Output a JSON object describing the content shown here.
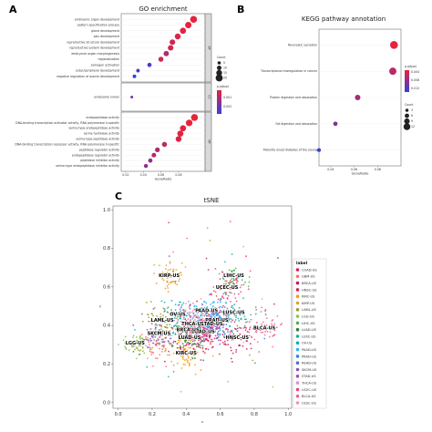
{
  "panels": {
    "a": "A",
    "b": "B",
    "c": "C"
  },
  "chart_data": [
    {
      "type": "scatter",
      "title": "GO enrichment",
      "xlabel": "GeneRatio",
      "xlim": [
        0.015,
        0.11
      ],
      "xticks": [
        0.02,
        0.04,
        0.06,
        0.08
      ],
      "facets": [
        {
          "name": "BP",
          "terms": [
            "embryonic organ development",
            "pattern specification process",
            "gland development",
            "axis development",
            "reproductive structure development",
            "reproductive system development",
            "embryonic organ morphogenesis",
            "regionalization",
            "zymogen activation",
            "outer/peripheral development",
            "negative regulation of ossicle development"
          ],
          "generatio": [
            0.097,
            0.091,
            0.085,
            0.079,
            0.073,
            0.071,
            0.066,
            0.06,
            0.047,
            0.034,
            0.03
          ],
          "count": [
            19,
            17,
            16,
            15,
            14,
            14,
            13,
            12,
            9,
            6,
            6
          ],
          "p_adjust": [
            0.0001,
            0.0001,
            0.0002,
            0.0002,
            0.0004,
            0.0004,
            0.0009,
            0.0004,
            0.0022,
            0.0024,
            0.0026
          ]
        },
        {
          "name": "CC",
          "terms": [
            "endosome lumen"
          ],
          "generatio": [
            0.027
          ],
          "count": [
            3
          ],
          "p_adjust": [
            0.0018
          ]
        },
        {
          "name": "MF",
          "terms": [
            "endopeptidase activity",
            "DNA-binding transcription activator activity, RNA polymerase II-specific",
            "serine-type endopeptidase activity",
            "serine hydrolase activity",
            "serine-type peptidase activity",
            "DNA-binding transcription repressor activity, RNA polymerase II-specific",
            "peptidase regulator activity",
            "endopeptidase regulator activity",
            "peptidase inhibitor activity",
            "serine-type endopeptidase inhibitor activity"
          ],
          "generatio": [
            0.098,
            0.092,
            0.085,
            0.082,
            0.08,
            0.064,
            0.056,
            0.052,
            0.048,
            0.043
          ],
          "count": [
            19,
            18,
            16,
            16,
            15,
            12,
            11,
            10,
            9,
            8
          ],
          "p_adjust": [
            0.0001,
            0.0001,
            0.0002,
            0.0002,
            0.0003,
            0.0007,
            0.0009,
            0.0008,
            0.0012,
            0.0014
          ]
        }
      ],
      "legend": {
        "count_title": "Count",
        "count_levels": [
          5,
          10,
          15,
          20
        ],
        "padj_title": "p.adjust",
        "padj_ticks": [
          "0.001",
          "0.002"
        ],
        "color_low": "#e8223a",
        "color_high": "#3340e0"
      }
    },
    {
      "type": "scatter",
      "title": "KEGG pathway annotation",
      "xlabel": "GeneRatio",
      "xlim": [
        0.03,
        0.1
      ],
      "xticks": [
        0.04,
        0.06,
        0.08
      ],
      "terms": [
        "Pancreatic secretion",
        "Transcriptional misregulation in cancer",
        "Protein digestion and absorption",
        "Fat digestion and absorption",
        "Maturity onset diabetes of the young"
      ],
      "generatio": [
        0.094,
        0.093,
        0.063,
        0.044,
        0.03
      ],
      "count": [
        10,
        9,
        6,
        4,
        3
      ],
      "p_adjust": [
        0.004,
        0.006,
        0.007,
        0.009,
        0.012
      ],
      "legend": {
        "padj_title": "p.adjust",
        "padj_ticks": [
          "0.004",
          "0.008",
          "0.012"
        ],
        "count_title": "Count",
        "count_levels": [
          3,
          6,
          9,
          12
        ],
        "color_low": "#e8223a",
        "color_high": "#3340e0"
      }
    },
    {
      "type": "scatter",
      "title": "tSNE",
      "xlabel": "x",
      "ylabel": "y",
      "xlim": [
        -0.03,
        1.02
      ],
      "ylim": [
        -0.03,
        1.02
      ],
      "xticks": [
        0.0,
        0.2,
        0.4,
        0.6,
        0.8,
        1.0
      ],
      "yticks": [
        0.0,
        0.2,
        0.4,
        0.6,
        0.8,
        1.0
      ],
      "legend_title": "label",
      "legend_position": "right",
      "series": [
        {
          "name": "COAD-US",
          "color": "#e6194b",
          "center": [
            0.5,
            0.36
          ]
        },
        {
          "name": "GBM-US",
          "color": "#ff6f61",
          "center": [
            0.24,
            0.3
          ]
        },
        {
          "name": "BRCA-US",
          "color": "#c2185b",
          "center": [
            0.41,
            0.37
          ]
        },
        {
          "name": "HNSC-US",
          "color": "#d81b60",
          "center": [
            0.7,
            0.33
          ]
        },
        {
          "name": "KIRC-US",
          "color": "#ff9800",
          "center": [
            0.4,
            0.25
          ]
        },
        {
          "name": "KIRP-US",
          "color": "#e0a030",
          "center": [
            0.3,
            0.65
          ]
        },
        {
          "name": "LAML-US",
          "color": "#9e9d24",
          "center": [
            0.26,
            0.42
          ]
        },
        {
          "name": "LGG-US",
          "color": "#8bc34a",
          "center": [
            0.1,
            0.3
          ]
        },
        {
          "name": "LIHC-US",
          "color": "#4caf50",
          "center": [
            0.68,
            0.65
          ]
        },
        {
          "name": "LUAD-US",
          "color": "#2e7d32",
          "center": [
            0.42,
            0.33
          ]
        },
        {
          "name": "LUSC-US",
          "color": "#26a69a",
          "center": [
            0.68,
            0.46
          ]
        },
        {
          "name": "OV-US",
          "color": "#00acc1",
          "center": [
            0.35,
            0.45
          ]
        },
        {
          "name": "PAAD-US",
          "color": "#29b6f6",
          "center": [
            0.52,
            0.47
          ]
        },
        {
          "name": "PRAD-US",
          "color": "#1e88e5",
          "center": [
            0.58,
            0.42
          ]
        },
        {
          "name": "READ-US",
          "color": "#5c6bc0",
          "center": [
            0.56,
            0.4
          ]
        },
        {
          "name": "SKCM-US",
          "color": "#7e57c2",
          "center": [
            0.24,
            0.35
          ]
        },
        {
          "name": "STAD-US",
          "color": "#ab47bc",
          "center": [
            0.55,
            0.4
          ]
        },
        {
          "name": "THCA-US",
          "color": "#ce93d8",
          "center": [
            0.44,
            0.4
          ]
        },
        {
          "name": "UCEC-US",
          "color": "#ec407a",
          "center": [
            0.64,
            0.59
          ]
        },
        {
          "name": "BLCA-US",
          "color": "#f06292",
          "center": [
            0.86,
            0.38
          ]
        },
        {
          "name": "CESC-US",
          "color": "#f48fb1",
          "center": [
            0.47,
            0.44
          ]
        }
      ],
      "annotations": [
        "KIRP-US",
        "LIHC-US",
        "UCEC-US",
        "THCA-US",
        "LAML-US",
        "OV-US",
        "PAAD-US",
        "PRAD-US",
        "STAD-US",
        "SKCM-US",
        "LUAD-US",
        "KIRC-US",
        "BLCA-US",
        "LGG-US",
        "LUSC-US",
        "HNSC-US",
        "COAD-US",
        "BRCA-US"
      ]
    }
  ]
}
